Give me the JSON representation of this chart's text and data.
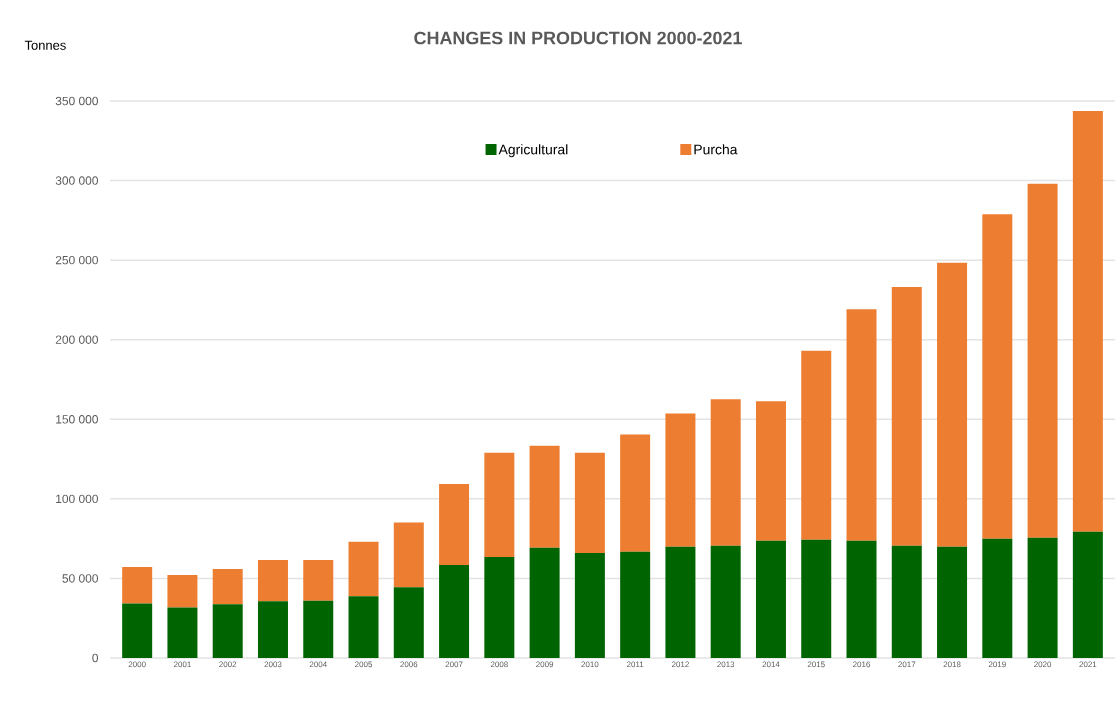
{
  "chart_data": {
    "type": "bar",
    "title": "CHANGES IN PRODUCTION 2000-2021",
    "ylabel": "Tonnes",
    "categories": [
      "2000",
      "2001",
      "2002",
      "2003",
      "2004",
      "2005",
      "2006",
      "2007",
      "2008",
      "2009",
      "2010",
      "2011",
      "2012",
      "2013",
      "2014",
      "2015",
      "2016",
      "2017",
      "2018",
      "2019",
      "2020",
      "2021"
    ],
    "stacked": true,
    "series": [
      {
        "name": "Agricultural",
        "color": "#006400",
        "values": [
          34300,
          31800,
          33700,
          35600,
          35900,
          38800,
          44500,
          58400,
          63500,
          69200,
          66000,
          66700,
          69900,
          70500,
          73700,
          74300,
          73700,
          70500,
          69900,
          75000,
          75600,
          79400
        ]
      },
      {
        "name": "Purcha",
        "color": "#ed7d31",
        "values": [
          22900,
          20300,
          22200,
          26000,
          25700,
          34300,
          40600,
          50900,
          65500,
          64200,
          63000,
          73700,
          83800,
          92100,
          87700,
          118800,
          145500,
          162700,
          178500,
          203900,
          222400,
          264300
        ]
      }
    ],
    "ylim": [
      0,
      350000
    ],
    "yticks": [
      0,
      {
        "value": 50000,
        "label": "50 000"
      },
      {
        "value": 100000,
        "label": "100 000"
      },
      {
        "value": 150000,
        "label": "150 000"
      },
      {
        "value": 200000,
        "label": "200 000"
      },
      {
        "value": 250000,
        "label": "250 000"
      },
      {
        "value": 300000,
        "label": "300 000"
      },
      {
        "value": 350000,
        "label": "350 000"
      }
    ],
    "grid": "y",
    "legend": "top"
  }
}
